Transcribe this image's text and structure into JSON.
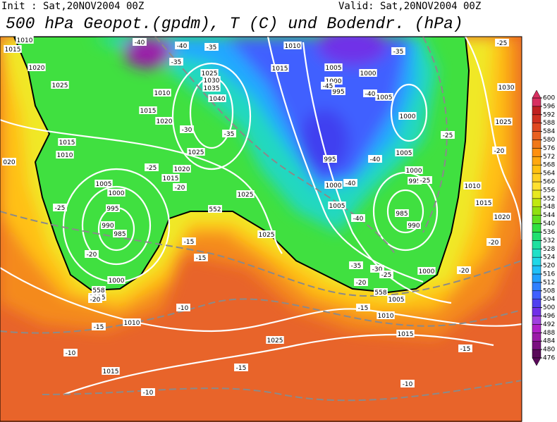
{
  "header": {
    "init": "Init : Sat,20NOV2004 00Z",
    "valid": "Valid: Sat,20NOV2004 00Z",
    "title": "500 hPa Geopot.(gpdm), T (C) und Bodendr. (hPa)"
  },
  "colorbar": {
    "levels": [
      476,
      480,
      484,
      488,
      492,
      496,
      500,
      504,
      508,
      512,
      516,
      520,
      524,
      528,
      532,
      536,
      540,
      544,
      548,
      552,
      556,
      560,
      564,
      568,
      572,
      576,
      580,
      584,
      588,
      592,
      596,
      600
    ],
    "colors": [
      "#5a0a5a",
      "#7a1080",
      "#9a1aa8",
      "#b020c8",
      "#a040e0",
      "#7030e8",
      "#5040f0",
      "#4060ff",
      "#3080ff",
      "#20a0ff",
      "#20c0f8",
      "#20d8e8",
      "#20e0c8",
      "#20e0a0",
      "#20e070",
      "#30e040",
      "#60e020",
      "#90e010",
      "#c0e810",
      "#e8e820",
      "#ffe030",
      "#ffd020",
      "#ffc010",
      "#ffa810",
      "#ff9010",
      "#f07818",
      "#e86020",
      "#e04820",
      "#d03020",
      "#c02020",
      "#d83060"
    ]
  },
  "map": {
    "labels": [
      "1015",
      "1010",
      "1020",
      "1025",
      "1015",
      "1010",
      "1005",
      "1000",
      "995",
      "990",
      "985",
      "-25",
      "-20",
      "1000",
      "1005",
      "-20",
      "-15",
      "1010",
      "-10",
      "1015",
      "-10",
      "1025",
      "-15",
      "-10",
      "-15",
      "-15",
      "1025",
      "1025",
      "1020",
      "1015",
      "-20",
      "-25",
      "1025",
      "1020",
      "-30",
      "1015",
      "1010",
      "1025",
      "1030",
      "1035",
      "1040",
      "-35",
      "-40",
      "-40",
      "-35",
      "-35",
      "1010",
      "1015",
      "1005",
      "1000",
      "1000",
      "995",
      "-45",
      "-40",
      "1005",
      "1000",
      "-25",
      "995",
      "-40",
      "1005",
      "1000",
      "995",
      "-25",
      "1000",
      "-40",
      "1005",
      "-40",
      "985",
      "990",
      "1010",
      "1015",
      "1020",
      "-20",
      "-20",
      "1000",
      "-35",
      "-30",
      "-25",
      "-20",
      "-15",
      "1005",
      "1010",
      "1015",
      "-15",
      "-10",
      "1025",
      "1030",
      "-20",
      "-25",
      "020",
      "552",
      "558",
      "558",
      "-35"
    ]
  }
}
